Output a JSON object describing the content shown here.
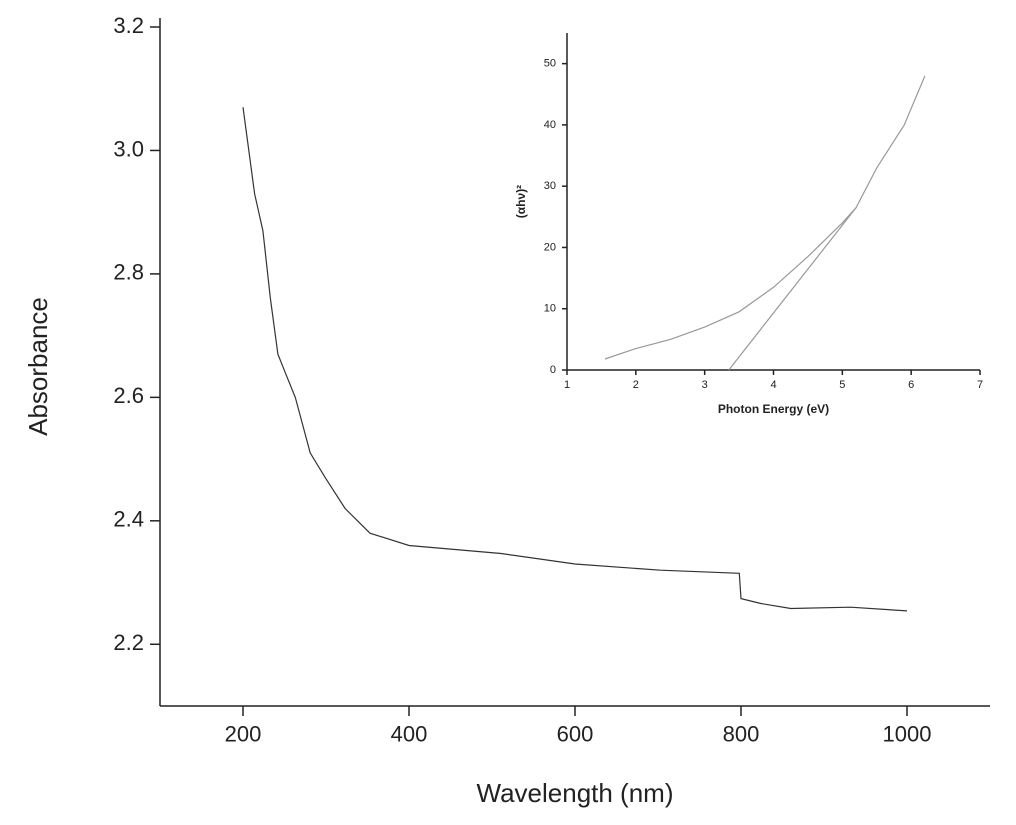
{
  "chart_data": [
    {
      "type": "line",
      "x_label": "Wavelength (nm)",
      "y_label": "Absorbance",
      "xlim": [
        100,
        1100
      ],
      "ylim": [
        2.1,
        3.2
      ],
      "xticks": [
        200,
        400,
        600,
        800,
        1000
      ],
      "yticks": [
        {
          "value": 2.2,
          "label": "2.2"
        },
        {
          "value": 2.4,
          "label": "2.4"
        },
        {
          "value": 2.6,
          "label": "2.6"
        },
        {
          "value": 2.8,
          "label": "2.8"
        },
        {
          "value": 3.0,
          "label": "3.0"
        },
        {
          "value": 3.2,
          "label": "3.2"
        }
      ],
      "series": [
        {
          "color": "#333333",
          "x": [
            200,
            214,
            224,
            233,
            242,
            251,
            263,
            281,
            299,
            323,
            353,
            400,
            511,
            600,
            703,
            798,
            800,
            824,
            860,
            932,
            1000
          ],
          "values": [
            3.07,
            2.93,
            2.87,
            2.76,
            2.67,
            2.64,
            2.6,
            2.51,
            2.47,
            2.42,
            2.38,
            2.36,
            2.347,
            2.33,
            2.32,
            2.315,
            2.274,
            2.266,
            2.258,
            2.26,
            2.254
          ]
        }
      ]
    },
    {
      "type": "line",
      "x_label": "Photon Energy (eV)",
      "y_label": "(αhν)²",
      "xlim": [
        1,
        7
      ],
      "ylim": [
        0,
        55
      ],
      "xticks": [
        1,
        2,
        3,
        4,
        5,
        6,
        7
      ],
      "yticks": [
        0,
        10,
        20,
        30,
        40,
        50
      ],
      "series": [
        {
          "color": "#999999",
          "x": [
            1.55,
            2,
            2.5,
            3,
            3.5,
            4,
            4.5,
            5,
            5.2,
            5.5,
            5.9,
            6.2
          ],
          "values": [
            1.8,
            3.5,
            5,
            7,
            9.5,
            13.5,
            18.5,
            24,
            26.5,
            33,
            40,
            48
          ]
        },
        {
          "color": "#999999",
          "x": [
            3.35,
            5.2
          ],
          "values": [
            0,
            26.5
          ]
        }
      ]
    }
  ]
}
